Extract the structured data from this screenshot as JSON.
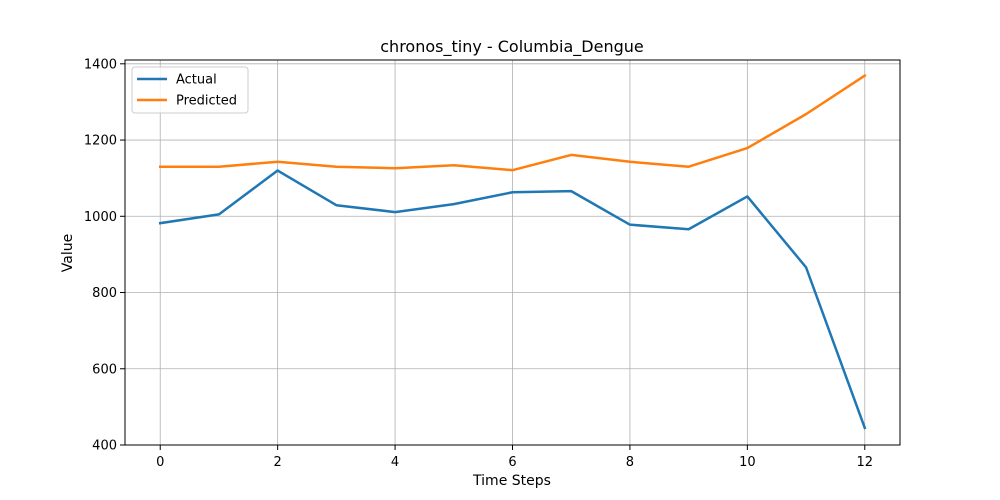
{
  "chart_data": {
    "type": "line",
    "title": "chronos_tiny - Columbia_Dengue",
    "xlabel": "Time Steps",
    "ylabel": "Value",
    "x": [
      0,
      1,
      2,
      3,
      4,
      5,
      6,
      7,
      8,
      9,
      10,
      11,
      12
    ],
    "xticks": [
      0,
      2,
      4,
      6,
      8,
      10,
      12
    ],
    "yticks": [
      400,
      600,
      800,
      1000,
      1200,
      1400
    ],
    "xlim": [
      -0.6,
      12.6
    ],
    "ylim": [
      400,
      1410
    ],
    "grid": true,
    "legend_position": "upper left",
    "series": [
      {
        "name": "Actual",
        "color": "#1f77b4",
        "values": [
          982,
          1005,
          1120,
          1029,
          1011,
          1032,
          1063,
          1066,
          978,
          966,
          1052,
          866,
          445
        ]
      },
      {
        "name": "Predicted",
        "color": "#ff7f0e",
        "values": [
          1130,
          1130,
          1143,
          1130,
          1126,
          1134,
          1121,
          1161,
          1143,
          1130,
          1179,
          1268,
          1369
        ]
      }
    ]
  }
}
